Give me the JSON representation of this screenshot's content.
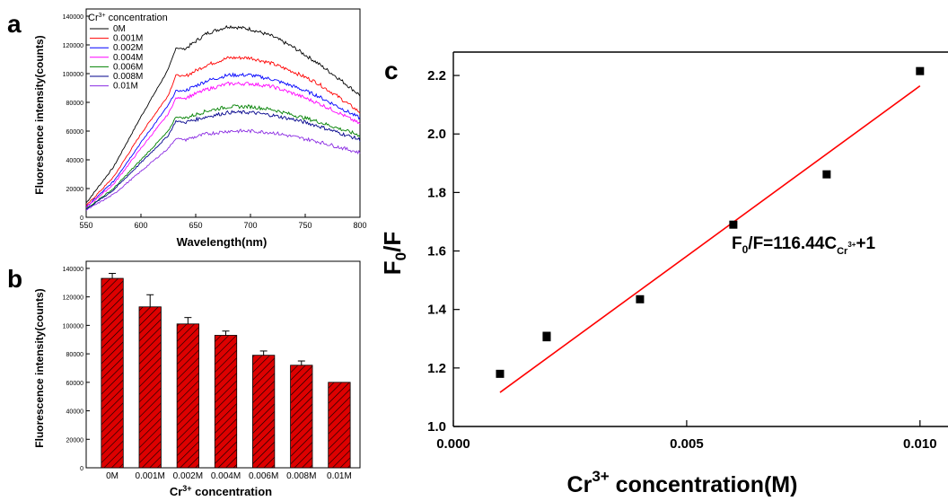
{
  "panels": {
    "a": {
      "letter": "a",
      "ylabel": "Fluorescence intensity(counts)",
      "xlabel": "Wavelength(nm)",
      "legend_title_prefix": "Cr",
      "legend_title_sup": "3+",
      "legend_title_suffix": " concentration"
    },
    "b": {
      "letter": "b",
      "ylabel": "Fluorescence intensity(counts)",
      "xlabel_prefix": "Cr",
      "xlabel_sup": "3+",
      "xlabel_suffix": " concentration"
    },
    "c": {
      "letter": "c",
      "ylabel_main": "F",
      "ylabel_sub": "0",
      "ylabel_tail": "/F",
      "xlabel_prefix": "Cr",
      "xlabel_sup": "3+",
      "xlabel_suffix": " concentration(M)",
      "equation_lead": "F",
      "equation_sub0": "0",
      "equation_mid": "/F=116.44C",
      "equation_subCr": "Cr",
      "equation_supCr": "3+",
      "equation_tail": "+1"
    }
  },
  "chart_data": [
    {
      "panel": "a",
      "type": "line",
      "xlabel": "Wavelength(nm)",
      "ylabel": "Fluorescence intensity(counts)",
      "xlim": [
        550,
        800
      ],
      "ylim": [
        0,
        145000
      ],
      "xticks": [
        550,
        600,
        650,
        700,
        750,
        800
      ],
      "yticks": [
        0,
        20000,
        40000,
        60000,
        80000,
        100000,
        120000,
        140000
      ],
      "legend_position": "top-left",
      "peak_x": 632,
      "series": [
        {
          "name": "0M",
          "color": "#000000",
          "points": [
            [
              550,
              10000
            ],
            [
              575,
              35000
            ],
            [
              600,
              70000
            ],
            [
              625,
              103000
            ],
            [
              632,
              118000
            ],
            [
              640,
              117000
            ],
            [
              660,
              128000
            ],
            [
              680,
              133000
            ],
            [
              700,
              131000
            ],
            [
              720,
              126000
            ],
            [
              740,
              118000
            ],
            [
              760,
              108000
            ],
            [
              780,
              97000
            ],
            [
              800,
              85000
            ]
          ]
        },
        {
          "name": "0.001M",
          "color": "#ff0000",
          "points": [
            [
              550,
              8000
            ],
            [
              575,
              28000
            ],
            [
              600,
              58000
            ],
            [
              625,
              85000
            ],
            [
              632,
              99000
            ],
            [
              640,
              98000
            ],
            [
              660,
              106000
            ],
            [
              680,
              111000
            ],
            [
              700,
              111000
            ],
            [
              720,
              107000
            ],
            [
              740,
              101000
            ],
            [
              760,
              94000
            ],
            [
              780,
              84000
            ],
            [
              800,
              73000
            ]
          ]
        },
        {
          "name": "0.002M",
          "color": "#0000ff",
          "points": [
            [
              550,
              7000
            ],
            [
              575,
              25000
            ],
            [
              600,
              52000
            ],
            [
              625,
              78000
            ],
            [
              632,
              88000
            ],
            [
              640,
              88000
            ],
            [
              660,
              95000
            ],
            [
              680,
              99000
            ],
            [
              700,
              99000
            ],
            [
              720,
              96000
            ],
            [
              740,
              91000
            ],
            [
              760,
              85000
            ],
            [
              780,
              77000
            ],
            [
              800,
              69000
            ]
          ]
        },
        {
          "name": "0.004M",
          "color": "#ff00ff",
          "points": [
            [
              550,
              7000
            ],
            [
              575,
              23000
            ],
            [
              600,
              48000
            ],
            [
              625,
              72000
            ],
            [
              632,
              83000
            ],
            [
              640,
              83000
            ],
            [
              660,
              89000
            ],
            [
              680,
              93000
            ],
            [
              700,
              93000
            ],
            [
              720,
              91000
            ],
            [
              740,
              86000
            ],
            [
              760,
              80000
            ],
            [
              780,
              73000
            ],
            [
              800,
              65000
            ]
          ]
        },
        {
          "name": "0.006M",
          "color": "#008000",
          "points": [
            [
              550,
              6000
            ],
            [
              575,
              20000
            ],
            [
              600,
              40000
            ],
            [
              625,
              60000
            ],
            [
              632,
              70000
            ],
            [
              640,
              69000
            ],
            [
              660,
              74000
            ],
            [
              680,
              77000
            ],
            [
              700,
              77000
            ],
            [
              720,
              75000
            ],
            [
              740,
              71000
            ],
            [
              760,
              67000
            ],
            [
              780,
              62000
            ],
            [
              800,
              57000
            ]
          ]
        },
        {
          "name": "0.008M",
          "color": "#00008b",
          "points": [
            [
              550,
              5500
            ],
            [
              575,
              19000
            ],
            [
              600,
              38000
            ],
            [
              625,
              57000
            ],
            [
              632,
              67000
            ],
            [
              640,
              66000
            ],
            [
              660,
              70000
            ],
            [
              680,
              73000
            ],
            [
              700,
              73000
            ],
            [
              720,
              71000
            ],
            [
              740,
              68000
            ],
            [
              760,
              64000
            ],
            [
              780,
              59000
            ],
            [
              800,
              54000
            ]
          ]
        },
        {
          "name": "0.01M",
          "color": "#8a2be2",
          "points": [
            [
              550,
              5000
            ],
            [
              575,
              16000
            ],
            [
              600,
              32000
            ],
            [
              625,
              48000
            ],
            [
              632,
              55000
            ],
            [
              640,
              54000
            ],
            [
              660,
              58000
            ],
            [
              680,
              60000
            ],
            [
              700,
              60000
            ],
            [
              720,
              59000
            ],
            [
              740,
              56000
            ],
            [
              760,
              53000
            ],
            [
              780,
              49000
            ],
            [
              800,
              45000
            ]
          ]
        }
      ]
    },
    {
      "panel": "b",
      "type": "bar",
      "categories": [
        "0M",
        "0.001M",
        "0.002M",
        "0.004M",
        "0.006M",
        "0.008M",
        "0.01M"
      ],
      "values": [
        133000,
        113000,
        101000,
        93000,
        79000,
        72000,
        60000
      ],
      "errors": [
        3500,
        8500,
        4500,
        3000,
        3000,
        3000,
        0
      ],
      "xlabel": "Cr3+ concentration",
      "ylabel": "Fluorescence intensity(counts)",
      "ylim": [
        0,
        145000
      ],
      "yticks": [
        0,
        20000,
        40000,
        60000,
        80000,
        100000,
        120000,
        140000
      ],
      "bar_color": "#dd0000",
      "hatch": "diagonal"
    },
    {
      "panel": "c",
      "type": "scatter",
      "xlabel": "Cr3+ concentration(M)",
      "ylabel": "F0/F",
      "xlim": [
        0,
        0.0106
      ],
      "ylim": [
        1.0,
        2.28
      ],
      "xticks": [
        0.0,
        0.005,
        0.01
      ],
      "xtick_labels": [
        "0.000",
        "0.005",
        "0.010"
      ],
      "yticks": [
        1.0,
        1.2,
        1.4,
        1.6,
        1.8,
        2.0,
        2.2
      ],
      "ytick_labels": [
        "1.0",
        "1.2",
        "1.4",
        "1.6",
        "1.8",
        "2.0",
        "2.2"
      ],
      "points": [
        [
          0.001,
          1.18
        ],
        [
          0.002,
          1.305
        ],
        [
          0.002,
          1.31
        ],
        [
          0.004,
          1.435
        ],
        [
          0.006,
          1.69
        ],
        [
          0.008,
          1.862
        ],
        [
          0.01,
          2.215
        ]
      ],
      "fit": {
        "slope": 116.44,
        "intercept": 1.0,
        "x_range": [
          0.001,
          0.01
        ],
        "color": "#ff0000"
      },
      "marker_color": "#000000"
    }
  ]
}
